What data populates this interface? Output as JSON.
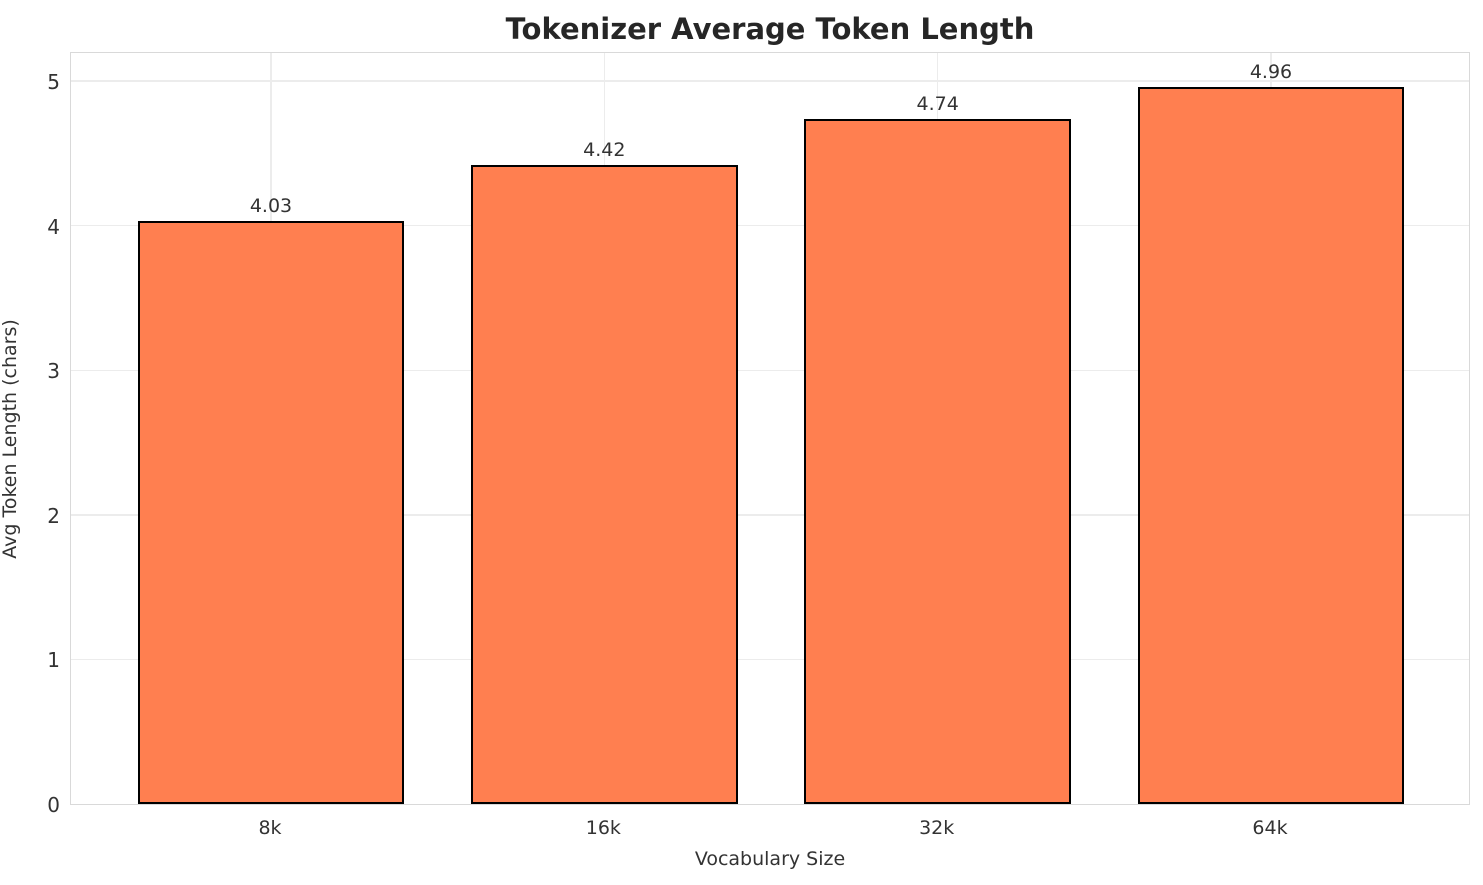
{
  "chart_data": {
    "type": "bar",
    "title": "Tokenizer Average Token Length",
    "categories": [
      "8k",
      "16k",
      "32k",
      "64k"
    ],
    "values": [
      4.03,
      4.42,
      4.74,
      4.96
    ],
    "value_labels": [
      "4.03",
      "4.42",
      "4.74",
      "4.96"
    ],
    "xlabel": "Vocabulary Size",
    "ylabel": "Avg Token Length (chars)",
    "yticks": [
      0,
      1,
      2,
      3,
      4,
      5
    ],
    "ylim": [
      0,
      5.208
    ],
    "xlim": [
      -0.6,
      3.6
    ],
    "bar_width_units": 0.8,
    "grid": true,
    "legend_position": "none",
    "colors": {
      "bar_fill": "#FF7F50",
      "bar_edge": "#000000",
      "grid": "#ececec",
      "spine": "#d9d9d9",
      "title_text": "#262626",
      "tick_text": "#333333",
      "background": "#ffffff"
    }
  }
}
